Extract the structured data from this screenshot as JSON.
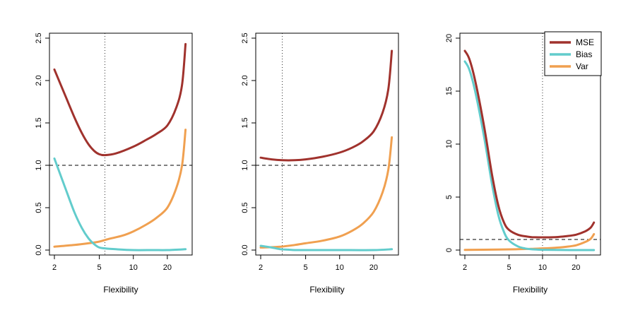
{
  "colors": {
    "mse": "#A0322D",
    "bias": "#62CCCC",
    "var": "#F0A050"
  },
  "chart_data": [
    {
      "type": "line",
      "xlabel": "Flexibility",
      "x_scale": "log",
      "xlim": [
        2,
        30
      ],
      "ylim": [
        0,
        2.5
      ],
      "yticks": [
        "0.0",
        "0.5",
        "1.0",
        "1.5",
        "2.0",
        "2.5"
      ],
      "xticks": [
        "2",
        "5",
        "10",
        "20"
      ],
      "hline": 1.0,
      "vline": 5.6,
      "series": [
        {
          "key": "mse",
          "x": [
            2,
            2.5,
            3,
            3.5,
            4,
            4.5,
            5,
            5.6,
            7,
            10,
            13,
            16,
            20,
            24,
            27,
            29
          ],
          "y": [
            2.13,
            1.82,
            1.57,
            1.38,
            1.25,
            1.17,
            1.13,
            1.12,
            1.14,
            1.22,
            1.3,
            1.37,
            1.47,
            1.68,
            1.95,
            2.43
          ]
        },
        {
          "key": "bias",
          "x": [
            2,
            2.5,
            3,
            3.5,
            4,
            4.5,
            5,
            5.6,
            7,
            10,
            15,
            20,
            29
          ],
          "y": [
            1.08,
            0.73,
            0.45,
            0.26,
            0.14,
            0.07,
            0.03,
            0.02,
            0.01,
            0.0,
            0.0,
            0.0,
            0.01
          ]
        },
        {
          "key": "var",
          "x": [
            2,
            3,
            4,
            5,
            6,
            8,
            10,
            13,
            16,
            20,
            24,
            27,
            29
          ],
          "y": [
            0.04,
            0.06,
            0.08,
            0.1,
            0.13,
            0.17,
            0.22,
            0.3,
            0.38,
            0.5,
            0.73,
            1.0,
            1.42
          ]
        }
      ]
    },
    {
      "type": "line",
      "xlabel": "Flexibility",
      "x_scale": "log",
      "xlim": [
        2,
        30
      ],
      "ylim": [
        0,
        2.5
      ],
      "yticks": [
        "0.0",
        "0.5",
        "1.0",
        "1.5",
        "2.0",
        "2.5"
      ],
      "xticks": [
        "2",
        "5",
        "10",
        "20"
      ],
      "hline": 1.0,
      "vline": 3.1,
      "series": [
        {
          "key": "mse",
          "x": [
            2,
            2.5,
            3.1,
            4,
            5,
            7,
            10,
            13,
            16,
            20,
            24,
            27,
            29
          ],
          "y": [
            1.09,
            1.07,
            1.06,
            1.06,
            1.07,
            1.1,
            1.15,
            1.21,
            1.28,
            1.4,
            1.62,
            1.9,
            2.35
          ]
        },
        {
          "key": "bias",
          "x": [
            2,
            2.5,
            3,
            3.5,
            4,
            5,
            7,
            10,
            20,
            29
          ],
          "y": [
            0.05,
            0.03,
            0.01,
            0.005,
            0.0,
            0.0,
            0.0,
            0.0,
            0.0,
            0.01
          ]
        },
        {
          "key": "var",
          "x": [
            2,
            3,
            4,
            5,
            7,
            10,
            13,
            16,
            20,
            24,
            27,
            29
          ],
          "y": [
            0.03,
            0.04,
            0.06,
            0.08,
            0.11,
            0.16,
            0.23,
            0.31,
            0.45,
            0.68,
            0.95,
            1.33
          ]
        }
      ]
    },
    {
      "type": "line",
      "xlabel": "Flexibility",
      "x_scale": "log",
      "xlim": [
        2,
        30
      ],
      "ylim": [
        0,
        20
      ],
      "yticks": [
        "0",
        "5",
        "10",
        "15",
        "20"
      ],
      "xticks": [
        "2",
        "5",
        "10",
        "20"
      ],
      "hline": 1.0,
      "vline": 10,
      "legend_position": "top-right",
      "legend": [
        "MSE",
        "Bias",
        "Var"
      ],
      "series": [
        {
          "key": "mse",
          "x": [
            2,
            2.2,
            2.5,
            3,
            3.5,
            4,
            4.5,
            5,
            6,
            7,
            8,
            10,
            13,
            16,
            20,
            24,
            27,
            29
          ],
          "y": [
            18.8,
            18.0,
            15.8,
            11.5,
            7.2,
            4.2,
            2.6,
            1.9,
            1.45,
            1.3,
            1.22,
            1.2,
            1.22,
            1.3,
            1.45,
            1.75,
            2.1,
            2.6
          ]
        },
        {
          "key": "bias",
          "x": [
            2,
            2.2,
            2.5,
            3,
            3.5,
            4,
            4.5,
            5,
            6,
            7,
            8,
            10,
            15,
            20,
            29
          ],
          "y": [
            17.8,
            17.0,
            14.8,
            10.5,
            6.3,
            3.3,
            1.7,
            0.9,
            0.35,
            0.15,
            0.07,
            0.03,
            0.01,
            0.0,
            0.0
          ]
        },
        {
          "key": "var",
          "x": [
            2,
            4,
            6,
            8,
            10,
            13,
            16,
            20,
            24,
            27,
            29
          ],
          "y": [
            0.02,
            0.05,
            0.08,
            0.12,
            0.16,
            0.22,
            0.3,
            0.45,
            0.75,
            1.05,
            1.5
          ]
        }
      ]
    }
  ]
}
